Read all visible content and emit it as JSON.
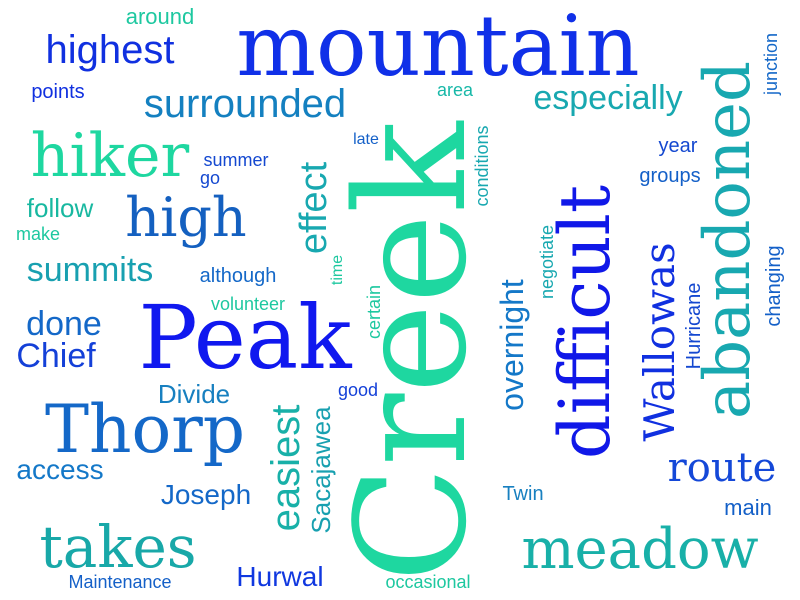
{
  "words": [
    {
      "text": "mountain",
      "color": "#1030e8"
    },
    {
      "text": "Creek",
      "color": "#1ed7a0"
    },
    {
      "text": "Peak",
      "color": "#1018ef"
    },
    {
      "text": "difficult",
      "color": "#1018e8"
    },
    {
      "text": "abandoned",
      "color": "#18a8b0"
    },
    {
      "text": "meadow",
      "color": "#18b0a8"
    },
    {
      "text": "Thorp",
      "color": "#1468c8"
    },
    {
      "text": "hiker",
      "color": "#1ed7a0"
    },
    {
      "text": "takes",
      "color": "#18a8a8"
    },
    {
      "text": "high",
      "color": "#1460c0"
    },
    {
      "text": "surrounded",
      "color": "#1480c0"
    },
    {
      "text": "highest",
      "color": "#1030e0"
    },
    {
      "text": "Wallowas",
      "color": "#1030e0"
    },
    {
      "text": "route",
      "color": "#1448d8"
    },
    {
      "text": "especially",
      "color": "#18a8b0"
    },
    {
      "text": "effect",
      "color": "#18a8b0"
    },
    {
      "text": "summits",
      "color": "#18a0b0"
    },
    {
      "text": "easiest",
      "color": "#18b0a8"
    },
    {
      "text": "overnight",
      "color": "#1478c8"
    },
    {
      "text": "Chief",
      "color": "#1440d8"
    },
    {
      "text": "done",
      "color": "#1468c8"
    },
    {
      "text": "access",
      "color": "#1478c8"
    },
    {
      "text": "Joseph",
      "color": "#1468c8"
    },
    {
      "text": "Hurwal",
      "color": "#1038e0"
    },
    {
      "text": "Sacajawea",
      "color": "#18a0b0"
    },
    {
      "text": "Divide",
      "color": "#1880c0"
    },
    {
      "text": "follow",
      "color": "#18b8a0"
    },
    {
      "text": "around",
      "color": "#1ec8a0"
    },
    {
      "text": "points",
      "color": "#1030e0"
    },
    {
      "text": "area",
      "color": "#18b8a8"
    },
    {
      "text": "late",
      "color": "#1460c8"
    },
    {
      "text": "summer",
      "color": "#1448d0"
    },
    {
      "text": "go",
      "color": "#1448d0"
    },
    {
      "text": "make",
      "color": "#1ec8a0"
    },
    {
      "text": "although",
      "color": "#1468c8"
    },
    {
      "text": "volunteer",
      "color": "#1ec8a0"
    },
    {
      "text": "time",
      "color": "#1ec8a0"
    },
    {
      "text": "certain",
      "color": "#1ec8a0"
    },
    {
      "text": "conditions",
      "color": "#18a8b0"
    },
    {
      "text": "negotiate",
      "color": "#18a8b0"
    },
    {
      "text": "junction",
      "color": "#1468c8"
    },
    {
      "text": "year",
      "color": "#1448d0"
    },
    {
      "text": "groups",
      "color": "#1460c8"
    },
    {
      "text": "changing",
      "color": "#1460c8"
    },
    {
      "text": "Hurricane",
      "color": "#1448d0"
    },
    {
      "text": "good",
      "color": "#1440d8"
    },
    {
      "text": "Twin",
      "color": "#1880c0"
    },
    {
      "text": "main",
      "color": "#1460c8"
    },
    {
      "text": "Maintenance",
      "color": "#1460c8"
    },
    {
      "text": "occasional",
      "color": "#1ec8a0"
    }
  ]
}
